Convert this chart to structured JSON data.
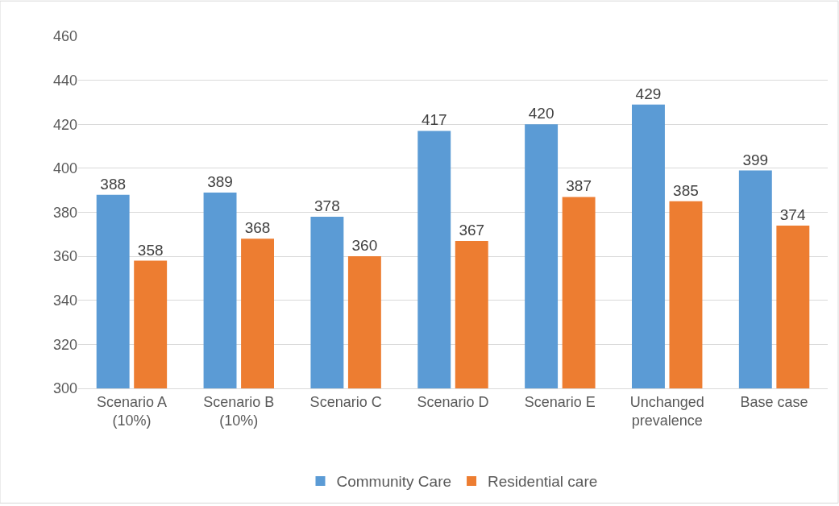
{
  "chart_data": {
    "type": "bar",
    "categories": [
      "Scenario A\n(10%)",
      "Scenario B\n(10%)",
      "Scenario C",
      "Scenario D",
      "Scenario E",
      "Unchanged\nprevalence",
      "Base case"
    ],
    "series": [
      {
        "name": "Community Care",
        "color": "#5b9bd5",
        "values": [
          388,
          389,
          378,
          417,
          420,
          429,
          399
        ]
      },
      {
        "name": "Residential care",
        "color": "#ed7d31",
        "values": [
          358,
          368,
          360,
          367,
          387,
          385,
          374
        ]
      }
    ],
    "ylim": [
      300,
      460
    ],
    "yticks": [
      300,
      320,
      340,
      360,
      380,
      400,
      420,
      440,
      460
    ],
    "grid": "y",
    "legend": "bottom",
    "data_labels": true
  }
}
